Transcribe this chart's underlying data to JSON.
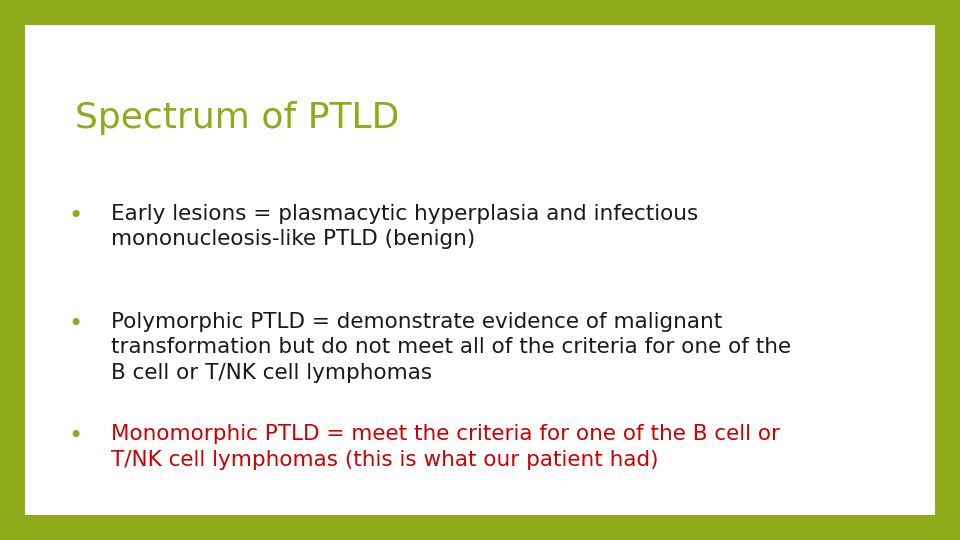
{
  "title": "Spectrum of PTLD",
  "title_color": "#8faa1b",
  "title_fontsize": 26,
  "background_color": "#FFFFFF",
  "border_color": "#8faa1b",
  "bullet_color": "#8faa1b",
  "bullet_char": "•",
  "bullets": [
    {
      "text": "Early lesions = plasmacytic hyperplasia and infectious\nmononucleosis-like PTLD (benign)",
      "color": "#1a1a1a",
      "fontsize": 15.5
    },
    {
      "text": "Polymorphic PTLD = demonstrate evidence of malignant\ntransformation but do not meet all of the criteria for one of the\nB cell or T/NK cell lymphomas",
      "color": "#1a1a1a",
      "fontsize": 15.5
    },
    {
      "text": "Monomorphic PTLD = meet the criteria for one of the B cell or\nT/NK cell lymphomas (this is what our patient had)",
      "color": "#CC0000",
      "fontsize": 15.5
    }
  ],
  "fig_width": 9.6,
  "fig_height": 5.4,
  "dpi": 100
}
